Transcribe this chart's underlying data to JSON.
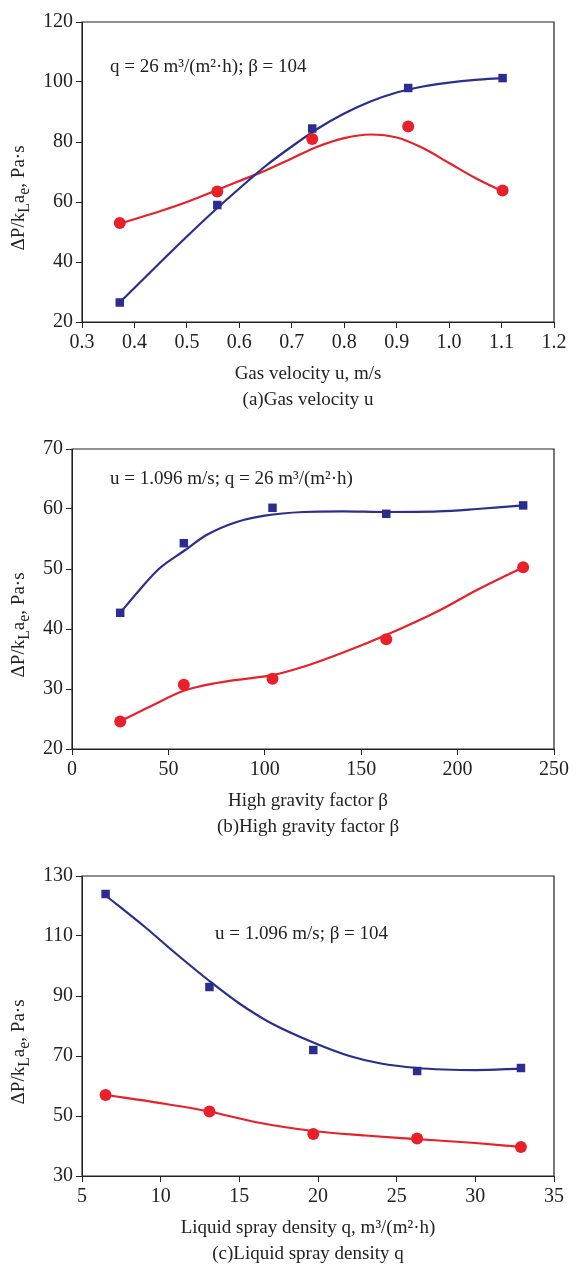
{
  "chart_data": [
    {
      "type": "scatter",
      "title": "(a)Gas velocity u",
      "xlabel": "Gas velocity u, m/s",
      "ylabel": "ΔP/k$_{L}$a$_{e}$, Pa·s",
      "annotations": [
        "q = 26 m³/(m²·h); β = 104"
      ],
      "xlim": [
        0.3,
        1.2
      ],
      "xticks": [
        {
          "value": 0.3,
          "label": "0.3"
        },
        {
          "value": 0.4,
          "label": "0.4"
        },
        {
          "value": 0.5,
          "label": "0.5"
        },
        {
          "value": 0.6,
          "label": "0.6"
        },
        {
          "value": 0.7,
          "label": "0.7"
        },
        {
          "value": 0.8,
          "label": "0.8"
        },
        {
          "value": 0.9,
          "label": "0.9"
        },
        {
          "value": 1.0,
          "label": "1.0"
        },
        {
          "value": 1.1,
          "label": "1.1"
        },
        {
          "value": 1.2,
          "label": "1.2"
        }
      ],
      "ylim": [
        20,
        120
      ],
      "yticks": [
        20,
        40,
        60,
        80,
        100,
        120
      ],
      "grid": false,
      "series": [
        {
          "type": "scatter",
          "marker": "square",
          "color": "#2b2e8f",
          "x": [
            0.372,
            0.558,
            0.739,
            0.922,
            1.102
          ],
          "values": [
            26.5,
            59,
            84.5,
            98,
            101.3
          ]
        },
        {
          "type": "scatter",
          "marker": "circle",
          "color": "#e8202a",
          "x": [
            0.372,
            0.558,
            0.739,
            0.922,
            1.102
          ],
          "values": [
            53,
            63.5,
            81,
            85.2,
            63.8
          ]
        },
        {
          "type": "line",
          "marker": "none",
          "color": "#2b2e8f",
          "x": [
            0.372,
            0.45,
            0.5,
            0.558,
            0.6,
            0.65,
            0.7,
            0.75,
            0.8,
            0.85,
            0.9,
            0.95,
            1.0,
            1.05,
            1.102
          ],
          "values": [
            26.5,
            40,
            48.5,
            58,
            64.5,
            72,
            78.5,
            84.5,
            89.5,
            93.5,
            96.5,
            98.5,
            99.8,
            100.7,
            101.3
          ]
        },
        {
          "type": "line",
          "marker": "none",
          "color": "#e8202a",
          "x": [
            0.372,
            0.45,
            0.5,
            0.558,
            0.6,
            0.65,
            0.7,
            0.75,
            0.8,
            0.85,
            0.9,
            0.95,
            1.0,
            1.05,
            1.102
          ],
          "values": [
            52.8,
            57,
            60,
            64,
            67,
            70.5,
            74.5,
            78.5,
            81.3,
            82.5,
            81.5,
            78,
            73,
            68,
            63.5
          ]
        }
      ]
    },
    {
      "type": "scatter",
      "title": "(b)High gravity factor β",
      "xlabel": "High gravity factor β",
      "ylabel": "ΔP/k$_{L}$a$_{e}$, Pa·s",
      "annotations": [
        "u = 1.096 m/s; q = 26 m³/(m²·h)"
      ],
      "xlim": [
        0,
        250
      ],
      "xticks": [
        0,
        50,
        100,
        150,
        200,
        250
      ],
      "ylim": [
        20,
        70
      ],
      "yticks": [
        20,
        30,
        40,
        50,
        60,
        70
      ],
      "grid": false,
      "series": [
        {
          "type": "scatter",
          "marker": "square",
          "color": "#2b2e8f",
          "x": [
            25,
            58,
            104,
            163,
            234
          ],
          "values": [
            42.7,
            54.3,
            60.2,
            59.2,
            60.6
          ]
        },
        {
          "type": "scatter",
          "marker": "circle",
          "color": "#e8202a",
          "x": [
            25,
            58,
            104,
            163,
            234
          ],
          "values": [
            24.6,
            30.7,
            31.7,
            38.3,
            50.3
          ]
        },
        {
          "type": "line",
          "marker": "none",
          "color": "#2b2e8f",
          "x": [
            25,
            35,
            45,
            58,
            70,
            85,
            100,
            120,
            140,
            163,
            190,
            210,
            234
          ],
          "values": [
            42.7,
            46.5,
            50,
            53,
            55.7,
            57.8,
            58.9,
            59.5,
            59.6,
            59.5,
            59.6,
            60,
            60.6
          ]
        },
        {
          "type": "line",
          "marker": "none",
          "color": "#e8202a",
          "x": [
            25,
            40,
            58,
            75,
            90,
            104,
            120,
            140,
            163,
            190,
            210,
            234
          ],
          "values": [
            24.6,
            27,
            29.7,
            31,
            31.7,
            32.3,
            33.7,
            36,
            39,
            43,
            46.5,
            50.3
          ]
        }
      ]
    },
    {
      "type": "scatter",
      "title": "(c)Liquid spray density q",
      "xlabel": "Liquid spray density q, m³/(m²·h)",
      "ylabel": "ΔP/k$_{L}$a$_{e}$, Pa·s",
      "annotations": [
        "u = 1.096 m/s; β = 104"
      ],
      "xlim": [
        5,
        35
      ],
      "xticks": [
        5,
        10,
        15,
        20,
        25,
        30,
        35
      ],
      "ylim": [
        30,
        130
      ],
      "yticks": [
        30,
        50,
        70,
        90,
        110,
        130
      ],
      "grid": false,
      "series": [
        {
          "type": "scatter",
          "marker": "square",
          "color": "#2b2e8f",
          "x": [
            6.5,
            13.1,
            19.7,
            26.3,
            32.9
          ],
          "values": [
            124,
            93,
            72,
            65,
            66
          ]
        },
        {
          "type": "scatter",
          "marker": "circle",
          "color": "#e8202a",
          "x": [
            6.5,
            13.1,
            19.7,
            26.3,
            32.9
          ],
          "values": [
            57,
            51.5,
            44,
            42.5,
            39.7
          ]
        },
        {
          "type": "line",
          "marker": "none",
          "color": "#2b2e8f",
          "x": [
            6.5,
            9,
            11,
            13.1,
            15,
            17,
            19.7,
            22,
            24,
            26.3,
            28,
            30,
            32.9
          ],
          "values": [
            123.5,
            113,
            104,
            95,
            87.5,
            81,
            74.5,
            70,
            67.5,
            66,
            65.5,
            65.3,
            65.8
          ]
        },
        {
          "type": "line",
          "marker": "none",
          "color": "#e8202a",
          "x": [
            6.5,
            10,
            13.1,
            16,
            19.7,
            23,
            26.3,
            30,
            32.9
          ],
          "values": [
            57,
            54.3,
            51.5,
            48,
            45,
            43.5,
            42.3,
            41,
            39.7
          ]
        }
      ]
    }
  ]
}
